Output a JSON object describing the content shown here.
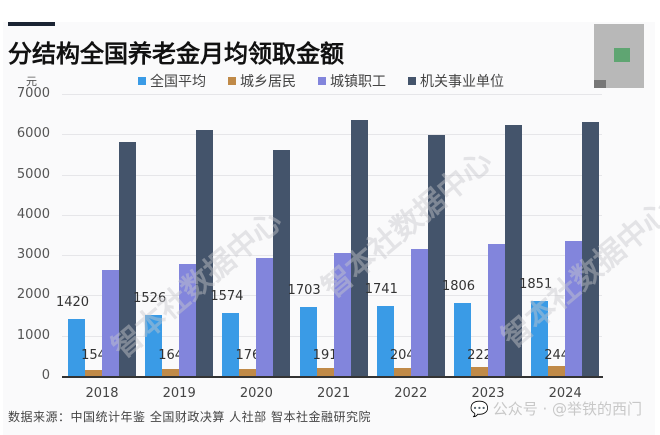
{
  "header": {
    "title": "分结构全国养老金月均领取金额",
    "unit": "元"
  },
  "legend": [
    {
      "label": "全国平均",
      "color": "#3a9be6"
    },
    {
      "label": "城乡居民",
      "color": "#c08a48"
    },
    {
      "label": "城镇职工",
      "color": "#8285dc"
    },
    {
      "label": "机关事业单位",
      "color": "#44546b"
    }
  ],
  "y_ticks": [
    "7000",
    "6000",
    "5000",
    "4000",
    "3000",
    "2000",
    "1000",
    "0"
  ],
  "footer": {
    "source": "数据来源：中国统计年鉴 全国财政决算 人社部 智本社金融研究院",
    "watermark": "公众号 · @举铁的西门",
    "diagonal_watermark": "智本社数据中心"
  },
  "chart_data": {
    "type": "bar",
    "title": "分结构全国养老金月均领取金额",
    "xlabel": "",
    "ylabel": "元",
    "ylim": [
      0,
      7000
    ],
    "grid": true,
    "legend_position": "top",
    "categories": [
      "2018",
      "2019",
      "2020",
      "2021",
      "2022",
      "2023",
      "2024"
    ],
    "series": [
      {
        "name": "全国平均",
        "color": "#3a9be6",
        "values": [
          1420,
          1526,
          1574,
          1703,
          1741,
          1806,
          1851
        ],
        "labeled": true
      },
      {
        "name": "城乡居民",
        "color": "#c08a48",
        "values": [
          154,
          164,
          176,
          191,
          204,
          222,
          244
        ],
        "labeled": true
      },
      {
        "name": "城镇职工",
        "color": "#8285dc",
        "values": [
          2630,
          2780,
          2930,
          3050,
          3150,
          3280,
          3350
        ],
        "labeled": false
      },
      {
        "name": "机关事业单位",
        "color": "#44546b",
        "values": [
          5810,
          6100,
          5610,
          6350,
          5980,
          6230,
          6300
        ],
        "labeled": false
      }
    ]
  }
}
